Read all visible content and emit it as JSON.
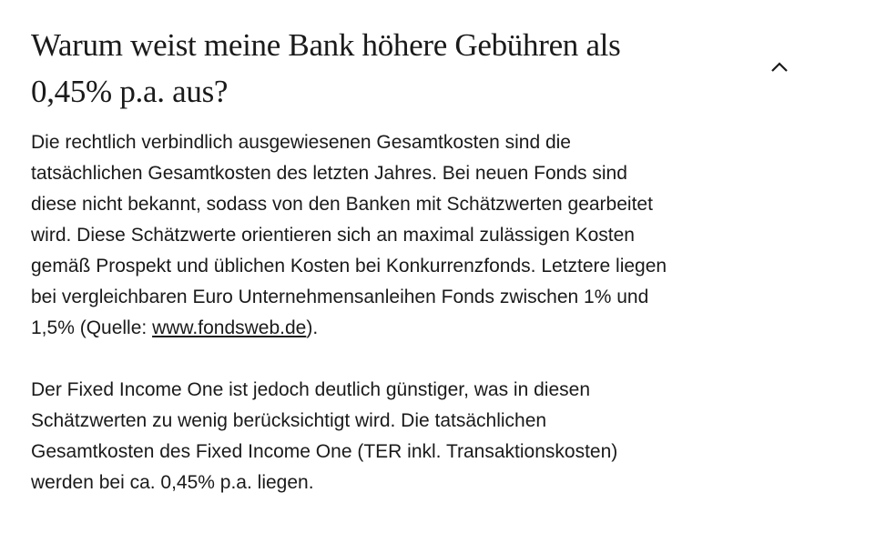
{
  "faq": {
    "question_lines": [
      "Warum weist meine Bank höhere Gebühren als",
      "0,45% p.a. aus?"
    ],
    "expanded": true,
    "toggle_icon": "chevron-up-icon",
    "paragraph1": {
      "lines": [
        "Die rechtlich verbindlich ausgewiesenen Gesamtkosten sind die",
        "tatsächlichen Gesamtkosten des letzten Jahres. Bei neuen Fonds sind",
        "diese nicht bekannt, sodass von den Banken mit Schätzwerten gearbeitet",
        "wird. Diese Schätzwerte orientieren sich an maximal zulässigen Kosten",
        "gemäß Prospekt und üblichen Kosten bei Konkurrenzfonds. Letztere liegen",
        "bei vergleichbaren Euro Unternehmensanleihen Fonds zwischen 1% und"
      ],
      "last_line_before": "1,5% (Quelle: ",
      "link_text": "www.fondsweb.de",
      "last_line_after": ")."
    },
    "paragraph2": {
      "lines": [
        "Der Fixed Income One ist jedoch deutlich günstiger, was in diesen",
        "Schätzwerten zu wenig berücksichtigt wird. Die tatsächlichen",
        "Gesamtkosten des Fixed Income One (TER inkl. Transaktionskosten)",
        "werden bei ca. 0,45% p.a. liegen."
      ]
    }
  }
}
